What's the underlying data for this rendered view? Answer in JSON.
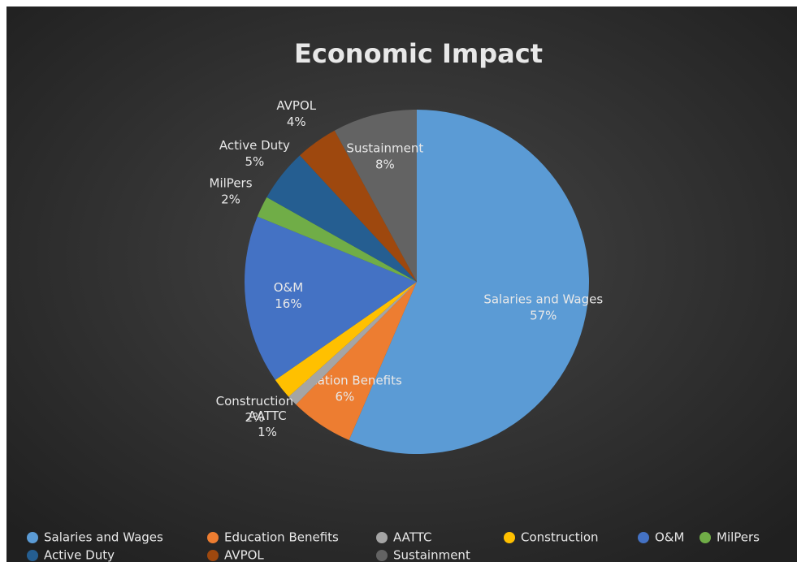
{
  "chart_data": {
    "type": "pie",
    "title": "Economic Impact",
    "categories": [
      "Salaries and Wages",
      "Education Benefits",
      "AATTC",
      "Construction",
      "O&M",
      "MilPers",
      "Active Duty",
      "AVPOL",
      "Sustainment"
    ],
    "values": [
      57,
      6,
      1,
      2,
      16,
      2,
      5,
      4,
      8
    ],
    "value_labels": [
      "57%",
      "6%",
      "1%",
      "2%",
      "16%",
      "2%",
      "5%",
      "4%",
      "8%"
    ],
    "colors": [
      "#5b9bd5",
      "#ed7d31",
      "#a5a5a5",
      "#ffc000",
      "#4472c4",
      "#70ad47",
      "#255e91",
      "#9e480e",
      "#636363"
    ],
    "legend": "bottom"
  }
}
